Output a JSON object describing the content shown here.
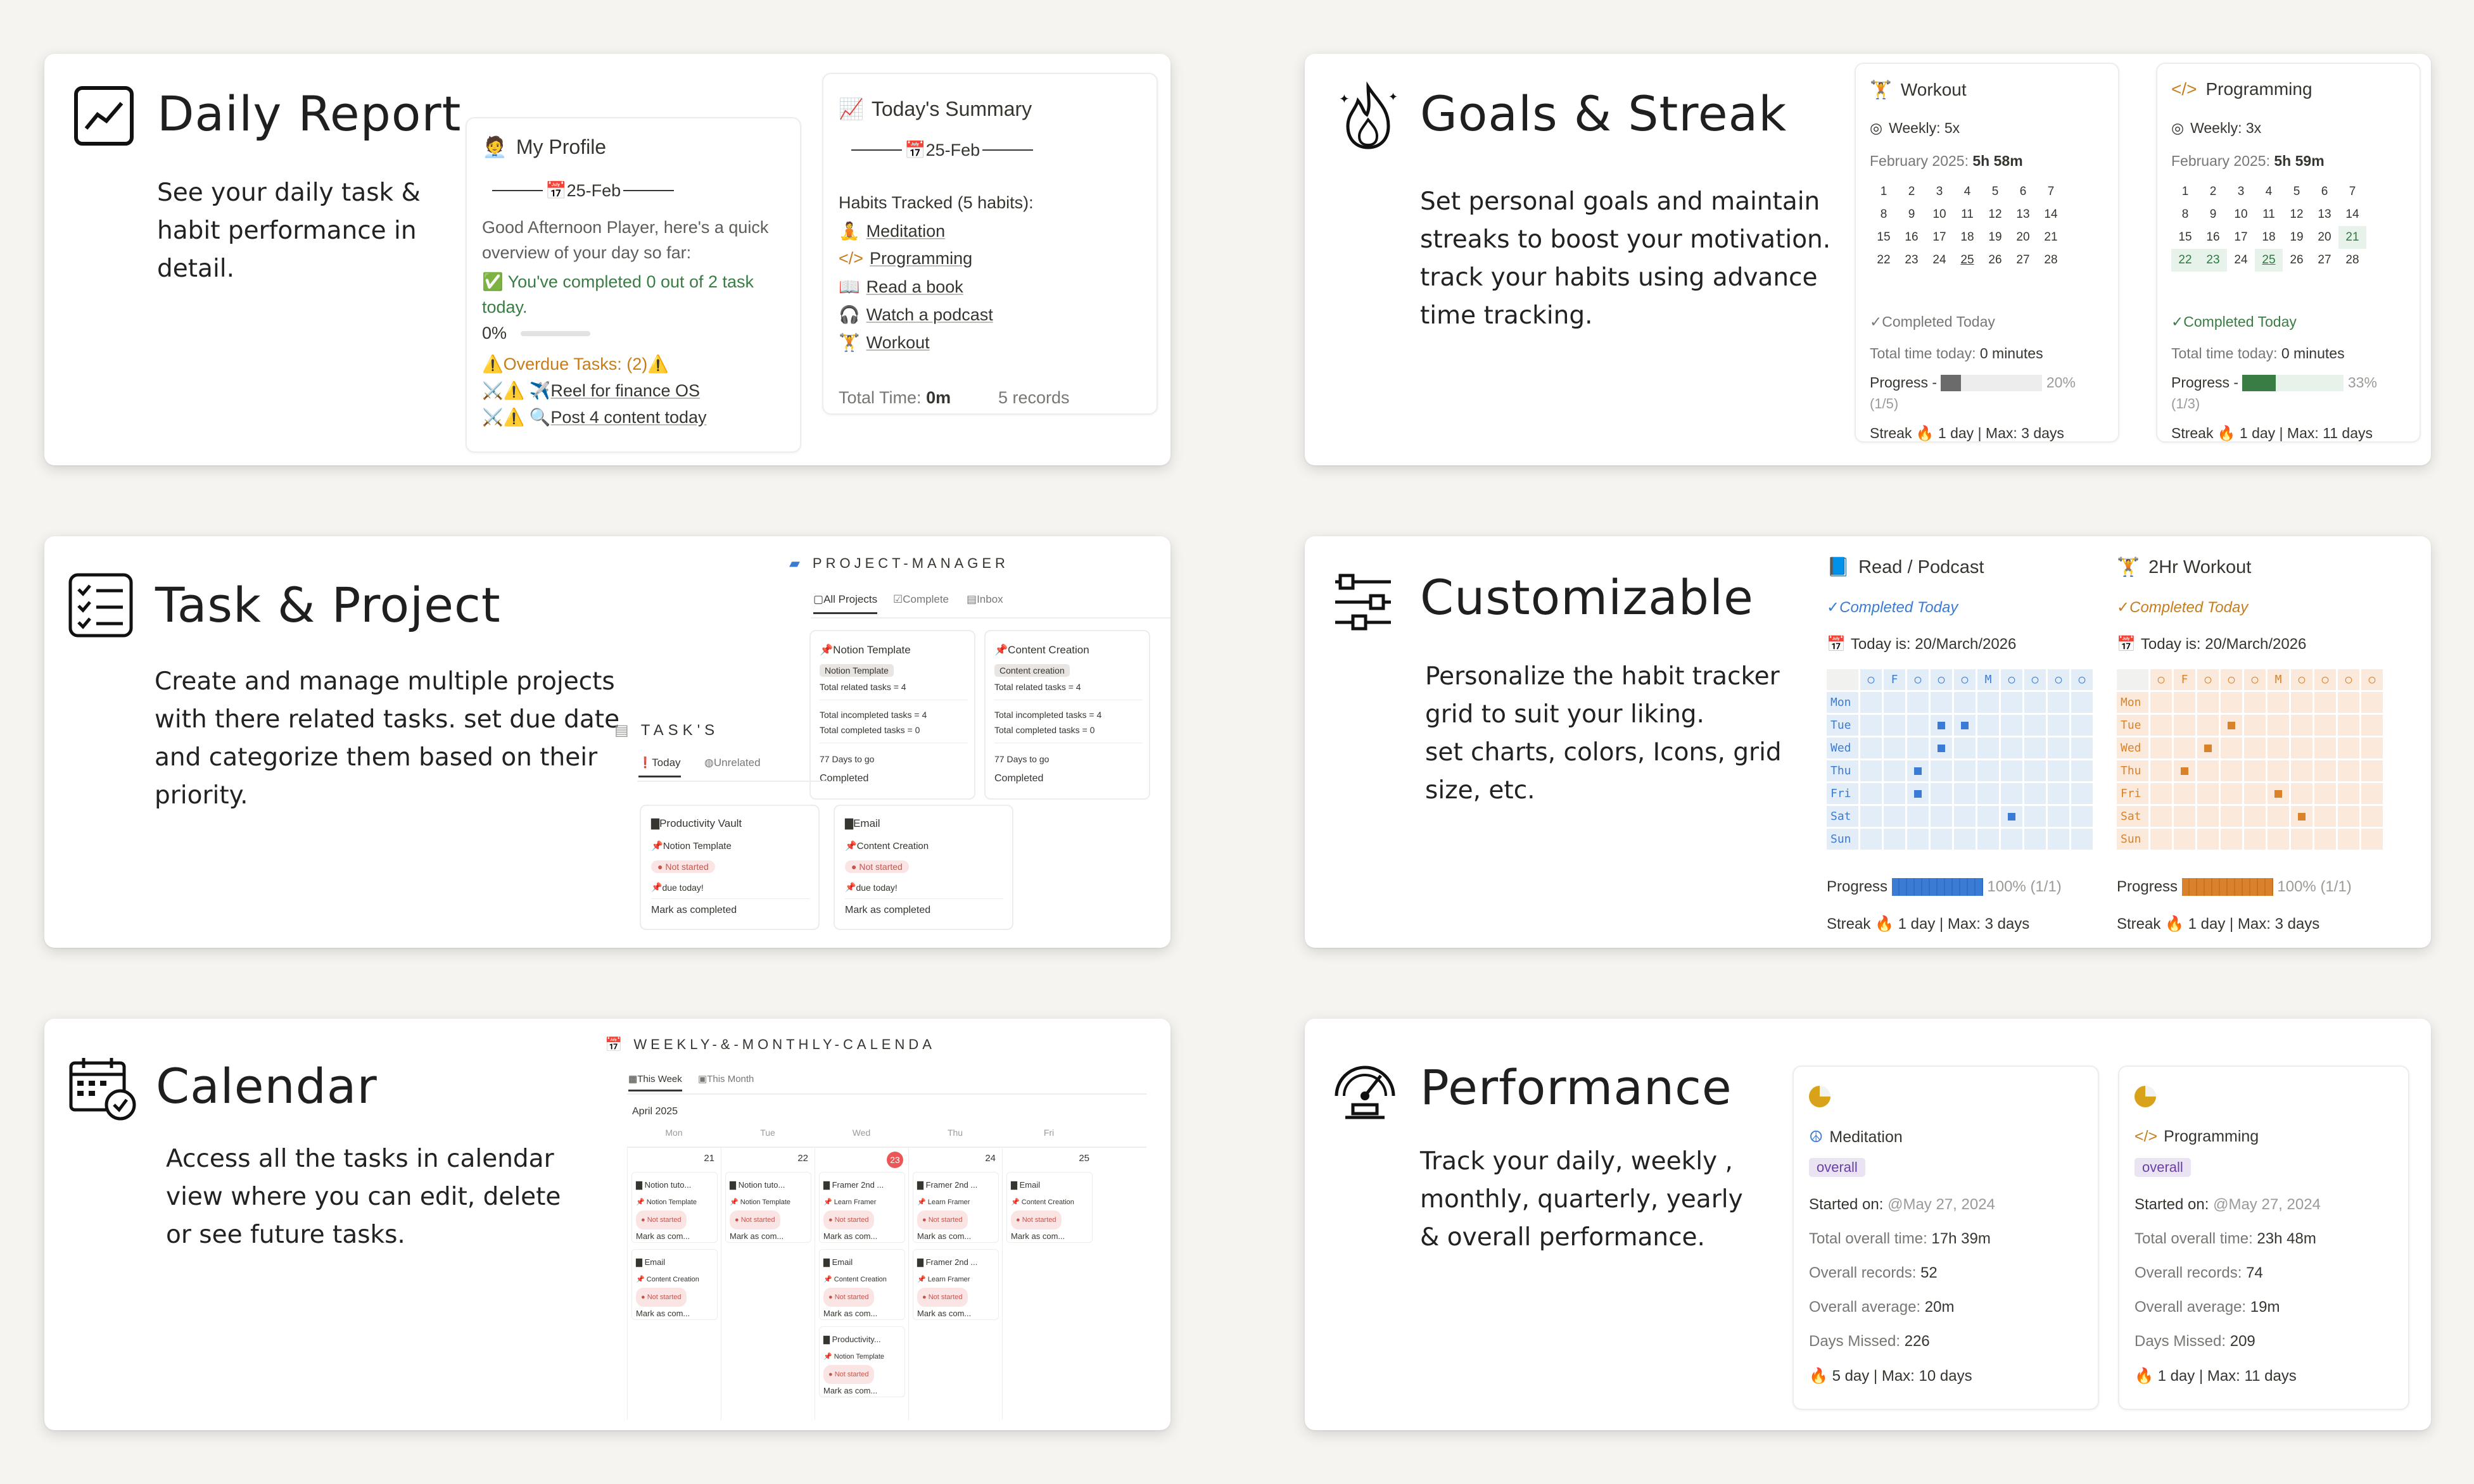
{
  "colors": {
    "background": "#f6f4f0",
    "green": "#3a7d44",
    "blue": "#3a7bd5",
    "orange": "#d9822b",
    "purple": "#6940a5",
    "red": "#c4554d"
  },
  "daily": {
    "title": "Daily Report",
    "desc": "See your daily task &\nhabit performance in\ndetail.",
    "profile": {
      "title": "My Profile",
      "date": "25-Feb",
      "greeting": "Good Afternoon Player, here's a quick overview of your day so far:",
      "completed": "You've completed 0 out of 2 task today.",
      "progress_pct": "0%",
      "overdue": "Overdue Tasks: (2)",
      "tasks": [
        "Reel for finance OS",
        "Post 4 content today"
      ]
    },
    "summary": {
      "title": "Today's Summary",
      "date": "25-Feb",
      "habits_label": "Habits Tracked (5 habits):",
      "habits": [
        "Meditation",
        "Programming",
        "Read a book",
        "Watch a podcast",
        "Workout"
      ],
      "total_time_label": "Total Time:",
      "total_time": "0m",
      "records": "5 records"
    }
  },
  "goals": {
    "title": "Goals & Streak",
    "desc": "Set personal goals and maintain\nstreaks to boost your motivation.\ntrack your habits using advance\ntime tracking.",
    "cards": [
      {
        "name": "Workout",
        "weekly": "Weekly: 5x",
        "month_label": "February 2025:",
        "month_time": "5h  58m",
        "days": [
          "1",
          "2",
          "3",
          "4",
          "5",
          "6",
          "7",
          "8",
          "9",
          "10",
          "11",
          "12",
          "13",
          "14",
          "15",
          "16",
          "17",
          "18",
          "19",
          "20",
          "21",
          "22",
          "23",
          "24",
          "25",
          "26",
          "27",
          "28"
        ],
        "completed": "Completed Today",
        "total_label": "Total time today:",
        "total": "0 minutes",
        "progress_label": "Progress -",
        "progress": 0.2,
        "progress_pct": "20%",
        "progress_frac": "(1/5)",
        "streak_label": "Streak",
        "streak": "1 day | Max: 3 days"
      },
      {
        "name": "Programming",
        "weekly": "Weekly: 3x",
        "month_label": "February 2025:",
        "month_time": "5h  59m",
        "days": [
          "1",
          "2",
          "3",
          "4",
          "5",
          "6",
          "7",
          "8",
          "9",
          "10",
          "11",
          "12",
          "13",
          "14",
          "15",
          "16",
          "17",
          "18",
          "19",
          "20",
          "21",
          "22",
          "23",
          "24",
          "25",
          "26",
          "27",
          "28"
        ],
        "completed": "Completed Today",
        "total_label": "Total time today:",
        "total": "0 minutes",
        "progress_label": "Progress -",
        "progress": 0.33,
        "progress_pct": "33%",
        "progress_frac": "(1/3)",
        "streak_label": "Streak",
        "streak": "1 day | Max: 11 days"
      }
    ]
  },
  "task": {
    "title": "Task & Project",
    "desc": "Create and manage multiple projects\nwith there related tasks. set due date\n and categorize them based on their\n priority.",
    "pm_title": "PROJECT-MANAGER",
    "pm_tabs": [
      "All Projects",
      "Complete",
      "Inbox"
    ],
    "projects": [
      {
        "name": "Notion Template",
        "tag": "Notion Template",
        "total": "Total related tasks = 4",
        "incomplete": "Total incompleted tasks = 4",
        "complete": "Total completed tasks = 0",
        "days": "7 Days to go",
        "status": "Completed"
      },
      {
        "name": "Content Creation",
        "tag": "Content creation",
        "total": "Total related tasks = 4",
        "incomplete": "Total incompleted tasks = 4",
        "complete": "Total completed tasks = 0",
        "days": "7 Days to go",
        "status": "Completed"
      }
    ],
    "tasks_title": "TASK'S",
    "task_tabs": [
      "Today",
      "Unrelated"
    ],
    "tasks": [
      {
        "name": "Productivity Vault",
        "project": "Notion Template",
        "status": "Not started",
        "due": "due today!",
        "action": "Mark as completed"
      },
      {
        "name": "Email",
        "project": "Content Creation",
        "status": "Not started",
        "due": "due today!",
        "action": "Mark as completed"
      }
    ]
  },
  "custom": {
    "title": "Customizable",
    "desc": "Personalize the habit tracker\ngrid to suit your liking.\nset charts, colors, Icons, grid\nsize, etc.",
    "trackers": [
      {
        "name": "Read / Podcast",
        "completed": "Completed Today",
        "today": "Today is: 20/March/2026",
        "days": [
          "Mon",
          "Tue",
          "Wed",
          "Thu",
          "Fri",
          "Sat",
          "Sun"
        ],
        "header": [
          "",
          "○",
          "F",
          "○",
          "○",
          "○",
          "M",
          "○"
        ],
        "progress_label": "Progress",
        "progress": 1.0,
        "progress_pct": "100% (1/1)",
        "streak_label": "Streak",
        "streak": "1 day | Max: 3 days"
      },
      {
        "name": "2Hr Workout",
        "completed": "Completed Today",
        "today": "Today is: 20/March/2026",
        "days": [
          "Mon",
          "Tue",
          "Wed",
          "Thu",
          "Fri",
          "Sat",
          "Sun"
        ],
        "header": [
          "",
          "○",
          "F",
          "○",
          "○",
          "○",
          "M",
          "○"
        ],
        "progress_label": "Progress",
        "progress": 1.0,
        "progress_pct": "100% (1/1)",
        "streak_label": "Streak",
        "streak": "1 day | Max: 3 days"
      }
    ]
  },
  "calendar": {
    "title": "Calendar",
    "desc": "Access all the tasks in calendar\nview where you can edit, delete\nor see future tasks.",
    "view_title": "WEEKLY-&-MONTHLY-CALENDA",
    "tabs": [
      "This Week",
      "This Month"
    ],
    "month": "April 2025",
    "weekdays": [
      "Mon",
      "Tue",
      "Wed",
      "Thu",
      "Fri"
    ],
    "dates": [
      "21",
      "22",
      "23",
      "24",
      "25"
    ],
    "columns": [
      [
        {
          "name": "Notion tuto...",
          "project": "Notion Template",
          "status": "Not started",
          "action": "Mark as com..."
        },
        {
          "name": "Email",
          "project": "Content Creation",
          "status": "Not started",
          "action": "Mark as com..."
        }
      ],
      [
        {
          "name": "Notion tuto...",
          "project": "Notion Template",
          "status": "Not started",
          "action": "Mark as com..."
        }
      ],
      [
        {
          "name": "Framer 2nd ...",
          "project": "Learn Framer",
          "status": "Not started",
          "action": "Mark as com..."
        },
        {
          "name": "Email",
          "project": "Content Creation",
          "status": "Not started",
          "action": "Mark as com..."
        },
        {
          "name": "Productivity...",
          "project": "Notion Template",
          "status": "Not started",
          "action": "Mark as com..."
        }
      ],
      [
        {
          "name": "Framer 2nd ...",
          "project": "Learn Framer",
          "status": "Not started",
          "action": "Mark as com..."
        },
        {
          "name": "Framer 2nd ...",
          "project": "Learn Framer",
          "status": "Not started",
          "action": "Mark as com..."
        }
      ],
      [
        {
          "name": "Email",
          "project": "Content Creation",
          "status": "Not started",
          "action": "Mark as com..."
        }
      ]
    ]
  },
  "performance": {
    "title": "Performance",
    "desc": "Track your daily, weekly ,\nmonthly, quarterly, yearly\n& overall performance.",
    "cards": [
      {
        "name": "Meditation",
        "tag": "overall",
        "started_label": "Started on:",
        "started": "@May 27, 2024",
        "total_label": "Total overall time:",
        "total": "17h 39m",
        "records_label": "Overall records:",
        "records": "52",
        "avg_label": "Overall average:",
        "avg": "20m",
        "missed_label": "Days Missed:",
        "missed": "226",
        "streak": "5 day | Max: 10 days"
      },
      {
        "name": "Programming",
        "tag": "overall",
        "started_label": "Started on:",
        "started": "@May 27, 2024",
        "total_label": "Total overall time:",
        "total": "23h 48m",
        "records_label": "Overall records:",
        "records": "74",
        "avg_label": "Overall average:",
        "avg": "19m",
        "missed_label": "Days Missed:",
        "missed": "209",
        "streak": "1 day | Max: 11 days"
      }
    ]
  }
}
